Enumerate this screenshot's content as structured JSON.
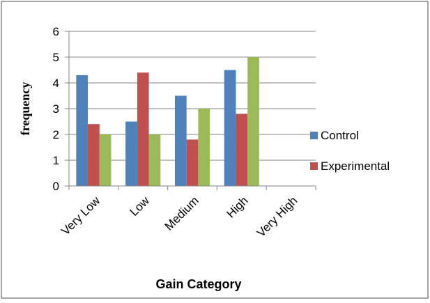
{
  "chart_data": {
    "type": "bar",
    "title": "",
    "xlabel": "Gain Category",
    "ylabel": "frequency",
    "categories": [
      "Very Low",
      "Low",
      "Medium",
      "High",
      "Very High"
    ],
    "series": [
      {
        "name": "Control",
        "color": "#4F81BD",
        "values": [
          4.3,
          2.5,
          3.5,
          4.5,
          null
        ]
      },
      {
        "name": "Experimental",
        "color": "#C0504D",
        "values": [
          2.4,
          4.4,
          1.8,
          2.8,
          null
        ]
      },
      {
        "name": "",
        "color": "#9BBB59",
        "values": [
          2.0,
          2.0,
          3.0,
          5.0,
          null
        ]
      }
    ],
    "ylim": [
      0,
      6
    ],
    "yticks": [
      0,
      1,
      2,
      3,
      4,
      5,
      6
    ],
    "grid": true,
    "legend_position": "right"
  }
}
